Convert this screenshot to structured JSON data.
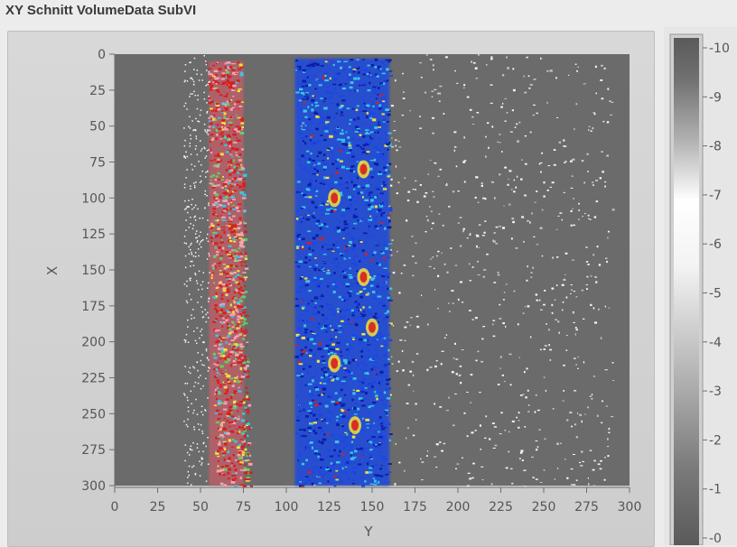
{
  "window": {
    "title": "XY Schnitt VolumeData SubVI"
  },
  "chart_data": {
    "type": "heatmap",
    "title": "",
    "xlabel": "Y",
    "ylabel": "X",
    "xlim": [
      0,
      300
    ],
    "ylim": [
      0,
      300
    ],
    "y_axis_inverted": true,
    "x_ticks": [
      0,
      25,
      50,
      75,
      100,
      125,
      150,
      175,
      200,
      225,
      250,
      275,
      300
    ],
    "y_ticks": [
      0,
      25,
      50,
      75,
      100,
      125,
      150,
      175,
      200,
      225,
      250,
      275,
      300
    ],
    "colorbar": {
      "range": [
        0,
        10
      ],
      "ticks": [
        0,
        1,
        2,
        3,
        4,
        5,
        6,
        7,
        8,
        9,
        10
      ],
      "colormap": "grayscale ramp (dark grey at 0 and 10, white near 6-7)"
    },
    "background_value": 2,
    "regions": [
      {
        "name": "left-strip",
        "y_range": [
          55,
          75
        ],
        "x_range": [
          5,
          300
        ],
        "dominant_colors": [
          "red",
          "pink",
          "yellow",
          "green",
          "cyan"
        ]
      },
      {
        "name": "center-band",
        "y_range": [
          105,
          160
        ],
        "x_range": [
          3,
          300
        ],
        "dominant_colors": [
          "blue",
          "dark-blue",
          "cyan",
          "yellow",
          "red"
        ]
      },
      {
        "name": "sparse-speckle",
        "y_range": [
          160,
          290
        ],
        "x_range": [
          0,
          300
        ],
        "dominant_colors": [
          "white",
          "light-grey"
        ]
      }
    ],
    "grid": false
  }
}
